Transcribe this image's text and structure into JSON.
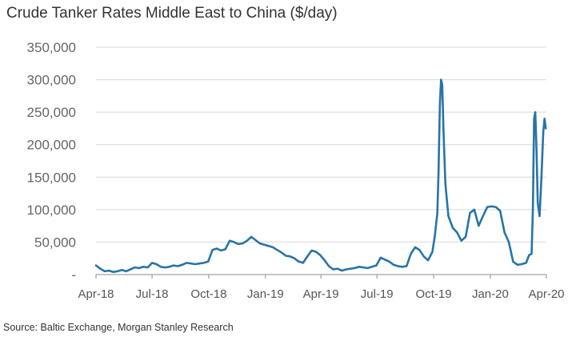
{
  "chart_data": {
    "type": "line",
    "title": "Crude Tanker Rates Middle East to China ($/day)",
    "source": "Source: Baltic Exchange, Morgan Stanley Research",
    "xlabel": "",
    "ylabel": "",
    "ylim": [
      0,
      350000
    ],
    "y_ticks": [
      0,
      50000,
      100000,
      150000,
      200000,
      250000,
      300000,
      350000
    ],
    "y_tick_labels": [
      "-",
      "50,000",
      "100,000",
      "150,000",
      "200,000",
      "250,000",
      "300,000",
      "350,000"
    ],
    "x_ticks": [
      "2018-04-01",
      "2018-07-01",
      "2018-10-01",
      "2019-01-01",
      "2019-04-01",
      "2019-07-01",
      "2019-10-01",
      "2020-01-01",
      "2020-04-01"
    ],
    "x_tick_labels": [
      "Apr-18",
      "Jul-18",
      "Oct-18",
      "Jan-19",
      "Apr-19",
      "Jul-19",
      "Oct-19",
      "Jan-20",
      "Apr-20"
    ],
    "grid": "horizontal",
    "line_color": "#2874a6",
    "series": [
      {
        "points": [
          [
            "2018-04-01",
            14000
          ],
          [
            "2018-04-08",
            9000
          ],
          [
            "2018-04-15",
            5000
          ],
          [
            "2018-04-22",
            6000
          ],
          [
            "2018-04-29",
            4000
          ],
          [
            "2018-05-06",
            5000
          ],
          [
            "2018-05-13",
            7000
          ],
          [
            "2018-05-20",
            5000
          ],
          [
            "2018-05-27",
            8000
          ],
          [
            "2018-06-03",
            11000
          ],
          [
            "2018-06-10",
            10000
          ],
          [
            "2018-06-17",
            12000
          ],
          [
            "2018-06-24",
            11000
          ],
          [
            "2018-07-01",
            18000
          ],
          [
            "2018-07-08",
            16000
          ],
          [
            "2018-07-15",
            12000
          ],
          [
            "2018-07-22",
            11000
          ],
          [
            "2018-07-29",
            12000
          ],
          [
            "2018-08-05",
            14000
          ],
          [
            "2018-08-12",
            13000
          ],
          [
            "2018-08-19",
            15000
          ],
          [
            "2018-08-26",
            18000
          ],
          [
            "2018-09-02",
            17000
          ],
          [
            "2018-09-09",
            16000
          ],
          [
            "2018-09-16",
            17000
          ],
          [
            "2018-09-23",
            18000
          ],
          [
            "2018-09-30",
            20000
          ],
          [
            "2018-10-07",
            38000
          ],
          [
            "2018-10-14",
            40000
          ],
          [
            "2018-10-21",
            37000
          ],
          [
            "2018-10-28",
            39000
          ],
          [
            "2018-11-04",
            52000
          ],
          [
            "2018-11-11",
            50000
          ],
          [
            "2018-11-18",
            47000
          ],
          [
            "2018-11-25",
            48000
          ],
          [
            "2018-12-02",
            52000
          ],
          [
            "2018-12-09",
            58000
          ],
          [
            "2018-12-16",
            53000
          ],
          [
            "2018-12-23",
            48000
          ],
          [
            "2018-12-30",
            46000
          ],
          [
            "2019-01-06",
            44000
          ],
          [
            "2019-01-13",
            42000
          ],
          [
            "2019-01-20",
            38000
          ],
          [
            "2019-01-27",
            34000
          ],
          [
            "2019-02-03",
            29000
          ],
          [
            "2019-02-10",
            28000
          ],
          [
            "2019-02-17",
            25000
          ],
          [
            "2019-02-24",
            20000
          ],
          [
            "2019-03-03",
            18000
          ],
          [
            "2019-03-10",
            28000
          ],
          [
            "2019-03-17",
            37000
          ],
          [
            "2019-03-24",
            35000
          ],
          [
            "2019-03-31",
            30000
          ],
          [
            "2019-04-07",
            22000
          ],
          [
            "2019-04-14",
            13000
          ],
          [
            "2019-04-21",
            8000
          ],
          [
            "2019-04-28",
            9000
          ],
          [
            "2019-05-05",
            6000
          ],
          [
            "2019-05-12",
            8000
          ],
          [
            "2019-05-19",
            9000
          ],
          [
            "2019-05-26",
            10000
          ],
          [
            "2019-06-02",
            12000
          ],
          [
            "2019-06-09",
            11000
          ],
          [
            "2019-06-16",
            10000
          ],
          [
            "2019-06-23",
            12000
          ],
          [
            "2019-06-30",
            14000
          ],
          [
            "2019-07-07",
            26000
          ],
          [
            "2019-07-14",
            23000
          ],
          [
            "2019-07-21",
            20000
          ],
          [
            "2019-07-28",
            15000
          ],
          [
            "2019-08-04",
            13000
          ],
          [
            "2019-08-11",
            12000
          ],
          [
            "2019-08-18",
            13000
          ],
          [
            "2019-08-25",
            32000
          ],
          [
            "2019-09-01",
            42000
          ],
          [
            "2019-09-08",
            38000
          ],
          [
            "2019-09-15",
            28000
          ],
          [
            "2019-09-22",
            22000
          ],
          [
            "2019-09-29",
            35000
          ],
          [
            "2019-10-03",
            60000
          ],
          [
            "2019-10-07",
            95000
          ],
          [
            "2019-10-09",
            160000
          ],
          [
            "2019-10-11",
            260000
          ],
          [
            "2019-10-13",
            300000
          ],
          [
            "2019-10-15",
            292000
          ],
          [
            "2019-10-17",
            220000
          ],
          [
            "2019-10-20",
            140000
          ],
          [
            "2019-10-25",
            90000
          ],
          [
            "2019-11-01",
            72000
          ],
          [
            "2019-11-08",
            65000
          ],
          [
            "2019-11-15",
            52000
          ],
          [
            "2019-11-22",
            58000
          ],
          [
            "2019-11-29",
            95000
          ],
          [
            "2019-12-06",
            100000
          ],
          [
            "2019-12-13",
            75000
          ],
          [
            "2019-12-20",
            90000
          ],
          [
            "2019-12-27",
            104000
          ],
          [
            "2020-01-03",
            105000
          ],
          [
            "2020-01-10",
            104000
          ],
          [
            "2020-01-17",
            98000
          ],
          [
            "2020-01-24",
            65000
          ],
          [
            "2020-01-31",
            50000
          ],
          [
            "2020-02-07",
            20000
          ],
          [
            "2020-02-14",
            15000
          ],
          [
            "2020-02-21",
            16000
          ],
          [
            "2020-02-28",
            18000
          ],
          [
            "2020-03-04",
            30000
          ],
          [
            "2020-03-08",
            32000
          ],
          [
            "2020-03-10",
            100000
          ],
          [
            "2020-03-12",
            240000
          ],
          [
            "2020-03-14",
            250000
          ],
          [
            "2020-03-16",
            190000
          ],
          [
            "2020-03-18",
            110000
          ],
          [
            "2020-03-21",
            90000
          ],
          [
            "2020-03-24",
            150000
          ],
          [
            "2020-03-27",
            220000
          ],
          [
            "2020-03-29",
            240000
          ],
          [
            "2020-03-31",
            225000
          ]
        ]
      }
    ]
  }
}
